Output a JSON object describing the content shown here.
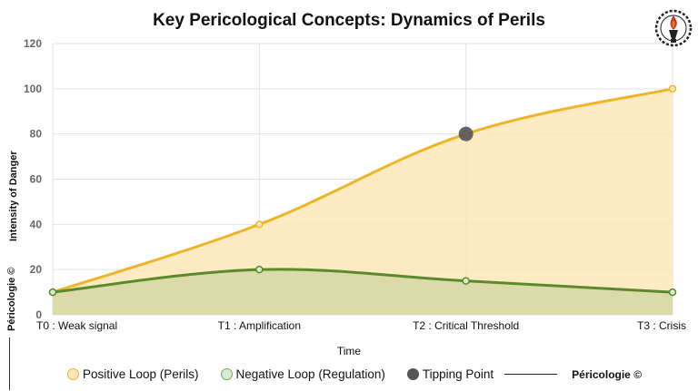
{
  "chart_data": {
    "type": "area",
    "title": "Key Pericological Concepts: Dynamics of Perils",
    "xlabel": "Time",
    "ylabel": "Intensity of Danger",
    "categories": [
      "T0 :  Weak signal",
      "T1 : Amplification",
      "T2 : Critical Threshold",
      "T3 : Crisis"
    ],
    "ylim": [
      0,
      120
    ],
    "yticks": [
      0,
      20,
      40,
      60,
      80,
      100,
      120
    ],
    "grid": true,
    "legend_position": "bottom",
    "series": [
      {
        "name": "Positive Loop (Perils)",
        "values": [
          10,
          40,
          80,
          100
        ],
        "color": "#f0b429",
        "fill": "#fbe8b8"
      },
      {
        "name": "Negative Loop (Regulation)",
        "values": [
          10,
          20,
          15,
          10
        ],
        "color": "#5a8a2b",
        "fill": "#d7d8a6"
      }
    ],
    "tipping_point": {
      "name": "Tipping Point",
      "x": "T2 : Critical Threshold",
      "y": 80,
      "color": "#555555"
    }
  },
  "branding": {
    "side_text": "Péricologie ©",
    "legend_text": "Péricologie ©"
  }
}
